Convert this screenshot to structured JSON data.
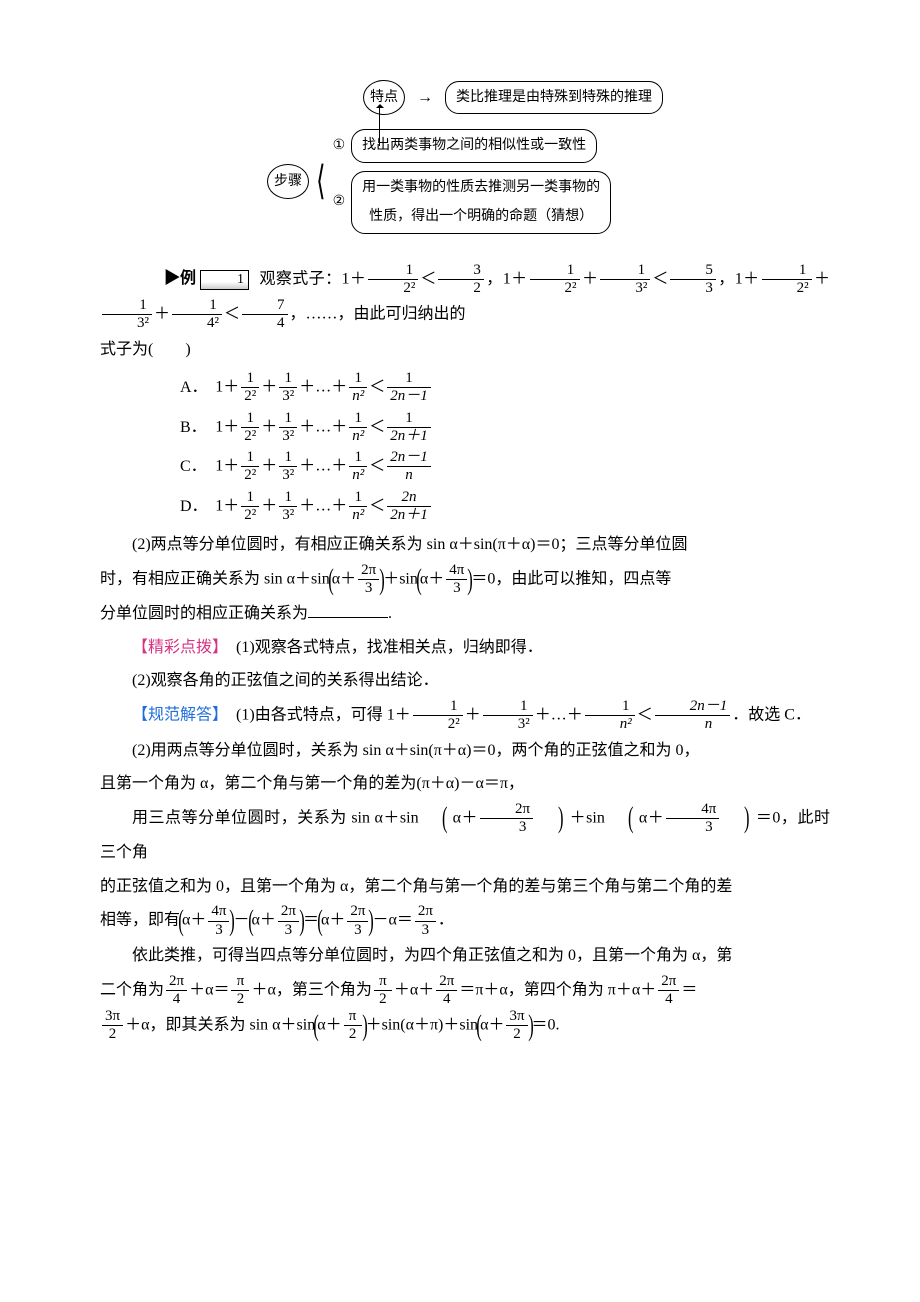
{
  "diagram": {
    "featureLabel": "特点",
    "stepsLabel": "步骤",
    "featureText": "类比推理是由特殊到特殊的推理",
    "step1Num": "①",
    "step1Text": "找出两类事物之间的相似性或一致性",
    "step2Num": "②",
    "step2TextA": "用一类事物的性质去推测另一类事物的",
    "step2TextB": "性质，得出一个明确的命题（猜想）"
  },
  "problem": {
    "exLabel": "▶例",
    "exNum": "1",
    "lead1a": "观察式子：1＋",
    "lead1b": "＜",
    "lead1c": "，1＋",
    "lead1d": "＋",
    "lead1e": "＜",
    "lead1f": "，1＋",
    "lead1g": "＋",
    "lead1h": "＋",
    "lead1i": "＜",
    "lead1j": "，……，由此可归纳出的",
    "lead2": "式子为(　　)",
    "optA": "A．",
    "optB": "B．",
    "optC": "C．",
    "optD": "D．",
    "opt_body_prefix": "1＋",
    "opt_plus": "＋",
    "opt_dots": "＋…＋",
    "opt_lt": "＜"
  },
  "part2": {
    "a": "(2)两点等分单位圆时，有相应正确关系为 sin α＋sin(π＋α)＝0；三点等分单位圆",
    "b1": "时，有相应正确关系为 sin α＋sin",
    "b2": "＋sin",
    "b3": "＝0，由此可以推知，四点等",
    "c": "分单位圆时的相应正确关系为",
    "period": "."
  },
  "hint": {
    "label": "【精彩点拨】",
    "l1": "(1)观察各式特点，找准相关点，归纳即得．",
    "l2": "(2)观察各角的正弦值之间的关系得出结论．"
  },
  "answer": {
    "label": "【规范解答】",
    "a1a": "(1)由各式特点，可得 1＋",
    "a1b": "＋",
    "a1c": "＋…＋",
    "a1d": "＜",
    "a1e": "．故选 C．",
    "a2": "(2)用两点等分单位圆时，关系为 sin α＋sin(π＋α)＝0，两个角的正弦值之和为 0，",
    "a3": "且第一个角为 α，第二个角与第一个角的差为(π＋α)－α＝π，",
    "a4a": "用三点等分单位圆时，关系为 sin α＋sin",
    "a4b": "＋sin",
    "a4c": "＝0，此时三个角",
    "a5": "的正弦值之和为 0，且第一个角为 α，第二个角与第一个角的差与第三个角与第二个角的差",
    "a6a": "相等，即有",
    "a6b": "－",
    "a6c": "＝",
    "a6d": "－α＝",
    "a6e": "．",
    "a7": "依此类推，可得当四点等分单位圆时，为四个角正弦值之和为 0，且第一个角为 α，第",
    "a8a": "二个角为",
    "a8b": "＋α＝",
    "a8c": "＋α，第三个角为",
    "a8d": "＋α＋",
    "a8e": "＝π＋α，第四个角为 π＋α＋",
    "a8f": "＝",
    "a9a": "＋α，即其关系为 sin α＋sin",
    "a9b": "＋sin(α＋π)＋sin",
    "a9c": "＝0."
  },
  "fracs": {
    "f_1_22": {
      "n": "1",
      "d": "2²"
    },
    "f_3_2": {
      "n": "3",
      "d": "2"
    },
    "f_1_32": {
      "n": "1",
      "d": "3²"
    },
    "f_5_3": {
      "n": "5",
      "d": "3"
    },
    "f_1_42": {
      "n": "1",
      "d": "4²"
    },
    "f_7_4": {
      "n": "7",
      "d": "4"
    },
    "f_1_n2": {
      "n": "1",
      "d": "n²"
    },
    "f_1_2nm1": {
      "n": "1",
      "d": "2n－1"
    },
    "f_1_2np1": {
      "n": "1",
      "d": "2n＋1"
    },
    "f_2nm1_n": {
      "n": "2n－1",
      "d": "n"
    },
    "f_2n_2np1": {
      "n": "2n",
      "d": "2n＋1"
    },
    "f_2pi_3": {
      "n": "2π",
      "d": "3"
    },
    "f_4pi_3": {
      "n": "4π",
      "d": "3"
    },
    "f_2pi_4": {
      "n": "2π",
      "d": "4"
    },
    "f_pi_2": {
      "n": "π",
      "d": "2"
    },
    "f_3pi_2": {
      "n": "3π",
      "d": "2"
    }
  }
}
